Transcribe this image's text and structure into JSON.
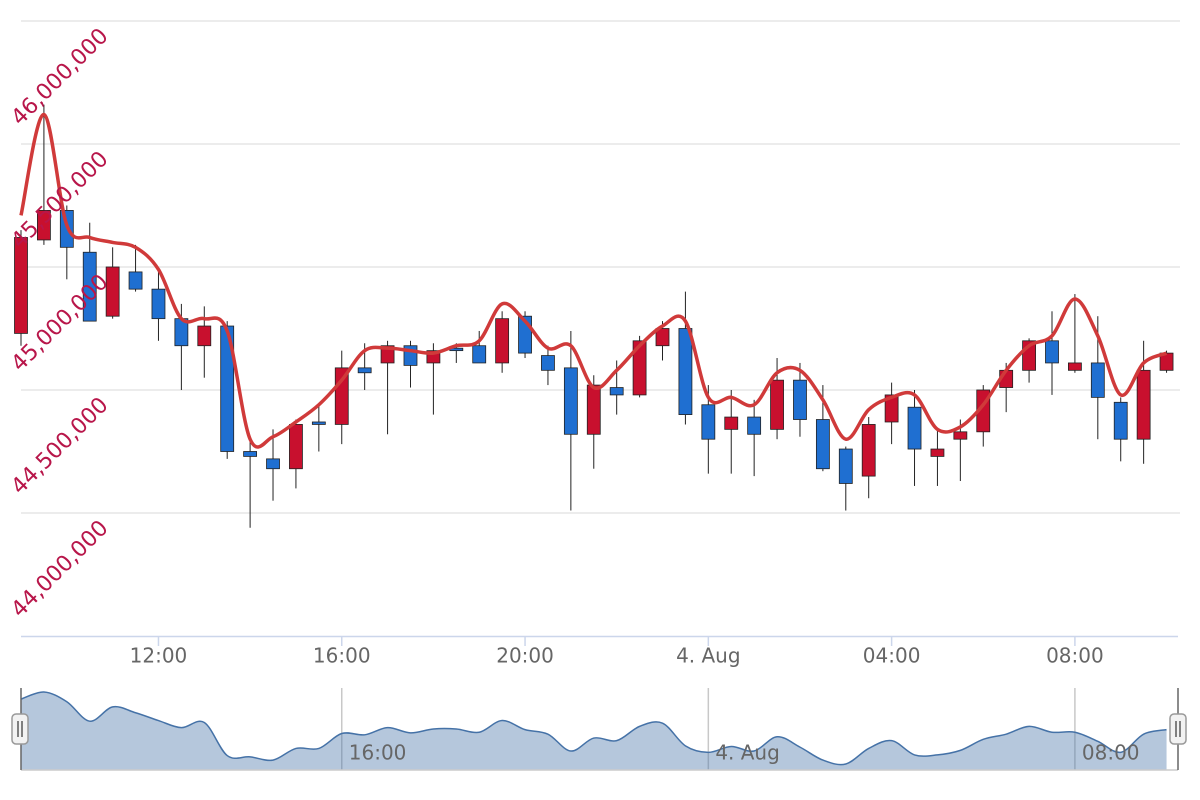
{
  "chart_data": {
    "type": "candlestick",
    "x": [
      9,
      9.5,
      10,
      10.5,
      11,
      11.5,
      12,
      12.5,
      13,
      13.5,
      14,
      14.5,
      15,
      15.5,
      16,
      16.5,
      17,
      17.5,
      18,
      18.5,
      19,
      19.5,
      20,
      20.5,
      21,
      21.5,
      22,
      22.5,
      23,
      23.5,
      24,
      24.5,
      25,
      25.5,
      26,
      26.5,
      27,
      27.5,
      28,
      28.5,
      29,
      29.5,
      30,
      30.5,
      31,
      31.5,
      32,
      32.5,
      33,
      33.5,
      34
    ],
    "open": [
      44730000,
      45110000,
      45230000,
      45060000,
      44800000,
      44980000,
      44910000,
      44790000,
      44680000,
      44760000,
      44250000,
      44220000,
      44180000,
      44370000,
      44360000,
      44590000,
      44610000,
      44680000,
      44610000,
      44670000,
      44680000,
      44610000,
      44800000,
      44640000,
      44590000,
      44320000,
      44510000,
      44480000,
      44680000,
      44750000,
      44440000,
      44340000,
      44390000,
      44340000,
      44540000,
      44380000,
      44260000,
      44150000,
      44370000,
      44430000,
      44230000,
      44300000,
      44330000,
      44510000,
      44580000,
      44700000,
      44580000,
      44610000,
      44450000,
      44300000,
      44580000
    ],
    "high": [
      45150000,
      45660000,
      45250000,
      45180000,
      45080000,
      45090000,
      44990000,
      44850000,
      44840000,
      44780000,
      44300000,
      44340000,
      44380000,
      44440000,
      44660000,
      44690000,
      44700000,
      44700000,
      44690000,
      44690000,
      44740000,
      44820000,
      44820000,
      44680000,
      44740000,
      44560000,
      44620000,
      44720000,
      44780000,
      44900000,
      44520000,
      44500000,
      44460000,
      44630000,
      44610000,
      44520000,
      44270000,
      44390000,
      44530000,
      44500000,
      44340000,
      44380000,
      44520000,
      44610000,
      44710000,
      44820000,
      44890000,
      44800000,
      44470000,
      44700000,
      44660000
    ],
    "low": [
      44680000,
      45090000,
      44950000,
      44780000,
      44790000,
      44900000,
      44700000,
      44500000,
      44550000,
      44220000,
      43940000,
      44050000,
      44100000,
      44250000,
      44280000,
      44500000,
      44320000,
      44510000,
      44400000,
      44610000,
      44610000,
      44570000,
      44630000,
      44520000,
      44010000,
      44180000,
      44400000,
      44470000,
      44620000,
      44360000,
      44160000,
      44160000,
      44150000,
      44300000,
      44310000,
      44170000,
      44010000,
      44060000,
      44280000,
      44110000,
      44110000,
      44130000,
      44270000,
      44410000,
      44530000,
      44480000,
      44570000,
      44300000,
      44210000,
      44200000,
      44570000
    ],
    "close": [
      45120000,
      45230000,
      45080000,
      44780000,
      45000000,
      44910000,
      44790000,
      44680000,
      44760000,
      44250000,
      44230000,
      44180000,
      44360000,
      44360000,
      44590000,
      44570000,
      44680000,
      44600000,
      44660000,
      44660000,
      44610000,
      44790000,
      44650000,
      44580000,
      44320000,
      44520000,
      44480000,
      44700000,
      44750000,
      44400000,
      44300000,
      44390000,
      44320000,
      44540000,
      44380000,
      44180000,
      44120000,
      44360000,
      44480000,
      44260000,
      44260000,
      44330000,
      44500000,
      44580000,
      44700000,
      44610000,
      44610000,
      44470000,
      44300000,
      44580000,
      44650000
    ],
    "up_color": "#c8102e",
    "down_color": "#1f6fd1",
    "line": {
      "color": "#d03a3a",
      "values": [
        45210000,
        45620000,
        45170000,
        45120000,
        45100000,
        45080000,
        44990000,
        44790000,
        44790000,
        44740000,
        44300000,
        44310000,
        44370000,
        44440000,
        44540000,
        44660000,
        44670000,
        44660000,
        44650000,
        44680000,
        44700000,
        44850000,
        44780000,
        44670000,
        44680000,
        44510000,
        44580000,
        44680000,
        44760000,
        44780000,
        44470000,
        44470000,
        44440000,
        44570000,
        44580000,
        44460000,
        44300000,
        44420000,
        44470000,
        44480000,
        44340000,
        44350000,
        44440000,
        44580000,
        44680000,
        44720000,
        44870000,
        44720000,
        44480000,
        44610000,
        44650000
      ]
    },
    "xlim": [
      9,
      34.25
    ],
    "xticks": [
      {
        "value": 12,
        "label": "12:00"
      },
      {
        "value": 16,
        "label": "16:00"
      },
      {
        "value": 20,
        "label": "20:00"
      },
      {
        "value": 24,
        "label": "4. Aug"
      },
      {
        "value": 28,
        "label": "04:00"
      },
      {
        "value": 32,
        "label": "08:00"
      }
    ],
    "ylim": [
      43500000,
      46000000
    ],
    "yticks": [
      {
        "value": 44000000,
        "label": "44,000,000"
      },
      {
        "value": 44500000,
        "label": "44,500,000"
      },
      {
        "value": 45000000,
        "label": "45,000,000"
      },
      {
        "value": 45500000,
        "label": "45,500,000"
      },
      {
        "value": 46000000,
        "label": "46,000,000"
      }
    ],
    "grid": true,
    "navigator": {
      "color": "#4572a7",
      "xticks": [
        {
          "value": 16,
          "label": "16:00"
        },
        {
          "value": 24,
          "label": "4. Aug"
        },
        {
          "value": 32,
          "label": "08:00"
        }
      ]
    }
  }
}
